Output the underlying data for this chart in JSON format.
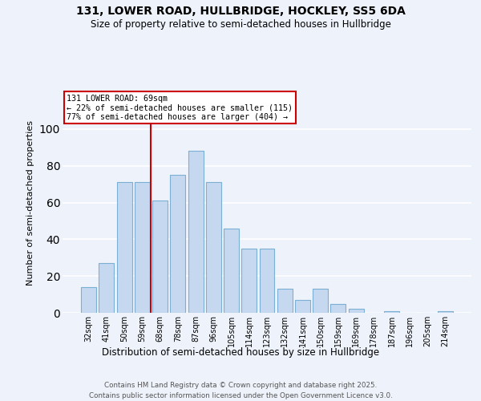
{
  "title1": "131, LOWER ROAD, HULLBRIDGE, HOCKLEY, SS5 6DA",
  "title2": "Size of property relative to semi-detached houses in Hullbridge",
  "xlabel": "Distribution of semi-detached houses by size in Hullbridge",
  "ylabel": "Number of semi-detached properties",
  "categories": [
    "32sqm",
    "41sqm",
    "50sqm",
    "59sqm",
    "68sqm",
    "78sqm",
    "87sqm",
    "96sqm",
    "105sqm",
    "114sqm",
    "123sqm",
    "132sqm",
    "141sqm",
    "150sqm",
    "159sqm",
    "169sqm",
    "178sqm",
    "187sqm",
    "196sqm",
    "205sqm",
    "214sqm"
  ],
  "values": [
    14,
    27,
    71,
    71,
    61,
    75,
    88,
    71,
    46,
    35,
    35,
    13,
    7,
    13,
    5,
    2,
    0,
    1,
    0,
    0,
    1
  ],
  "bar_color": "#c5d8f0",
  "bar_edge_color": "#7bafd4",
  "property_line_idx": 4,
  "annotation_title": "131 LOWER ROAD: 69sqm",
  "annotation_line1": "← 22% of semi-detached houses are smaller (115)",
  "annotation_line2": "77% of semi-detached houses are larger (404) →",
  "annotation_box_color": "#ffffff",
  "annotation_box_edge": "#cc0000",
  "vline_color": "#cc0000",
  "ylim": [
    0,
    120
  ],
  "yticks": [
    0,
    20,
    40,
    60,
    80,
    100
  ],
  "background_color": "#eef2fa",
  "grid_color": "#ffffff",
  "footer1": "Contains HM Land Registry data © Crown copyright and database right 2025.",
  "footer2": "Contains public sector information licensed under the Open Government Licence v3.0."
}
